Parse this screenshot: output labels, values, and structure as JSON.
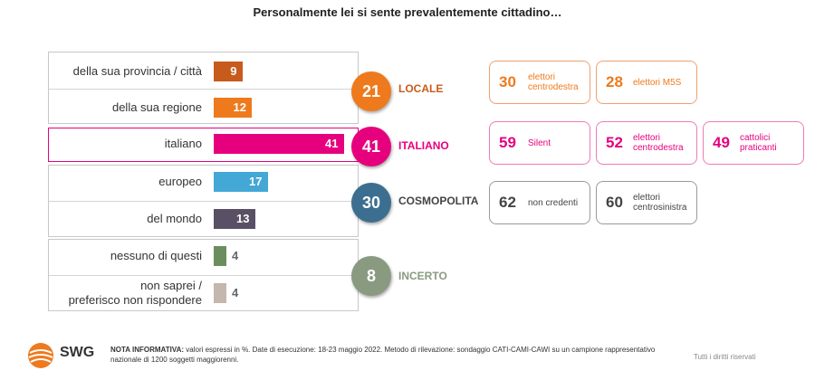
{
  "title": "Personalmente lei si sente prevalentemente cittadino…",
  "chart_data": {
    "type": "bar",
    "orientation": "horizontal",
    "xlim": [
      0,
      50
    ],
    "rows": [
      {
        "label": "della sua provincia / città",
        "value": 9,
        "color": "#c75b1b",
        "value_text": "9"
      },
      {
        "label": "della sua regione",
        "value": 12,
        "color": "#ee7a1d",
        "value_text": "12"
      },
      {
        "label": "italiano",
        "value": 41,
        "color": "#e6007e",
        "value_text": "41"
      },
      {
        "label": "europeo",
        "value": 17,
        "color": "#44a8d6",
        "value_text": "17"
      },
      {
        "label": "del mondo",
        "value": 13,
        "color": "#595065",
        "value_text": "13"
      },
      {
        "label": "nessuno di questi",
        "value": 4,
        "color": "#6b8e5f",
        "value_text": "4"
      },
      {
        "label": "non saprei / preferisco non rispondere",
        "label_lines": [
          "non saprei /",
          "preferisco non rispondere"
        ],
        "value": 4,
        "color": "#c4b7ae",
        "value_text": "4"
      }
    ],
    "groups": [
      {
        "value": "21",
        "label": "LOCALE",
        "color": "#ee7a1d",
        "text_color": "#c75b1b"
      },
      {
        "value": "41",
        "label": "ITALIANO",
        "color": "#e6007e",
        "text_color": "#e6007e"
      },
      {
        "value": "30",
        "label": "COSMOPOLITA",
        "color": "#3c6f8f",
        "text_color": "#444444"
      },
      {
        "value": "8",
        "label": "INCERTO",
        "color": "#8a9a80",
        "text_color": "#8a9a80"
      }
    ]
  },
  "cards": [
    {
      "value": "30",
      "lines": [
        "elettori",
        "centrodestra"
      ],
      "color": "#ee7a1d",
      "border": "#f0a070"
    },
    {
      "value": "28",
      "lines": [
        "elettori M5S"
      ],
      "color": "#ee7a1d",
      "border": "#f0a070"
    },
    {
      "value": "59",
      "lines": [
        "Silent"
      ],
      "color": "#e6007e",
      "border": "#f07ab8"
    },
    {
      "value": "52",
      "lines": [
        "elettori",
        "centrodestra"
      ],
      "color": "#e6007e",
      "border": "#f07ab8"
    },
    {
      "value": "49",
      "lines": [
        "cattolici",
        "praticanti"
      ],
      "color": "#e6007e",
      "border": "#f07ab8"
    },
    {
      "value": "62",
      "lines": [
        "non credenti"
      ],
      "color": "#444444",
      "border": "#9a9a9a"
    },
    {
      "value": "60",
      "lines": [
        "elettori",
        "centrosinistra"
      ],
      "color": "#444444",
      "border": "#9a9a9a"
    }
  ],
  "footer": {
    "logo_text": "SWG",
    "note_label": "NOTA INFORMATIVA:",
    "note_text": "valori espressi in %. Date di esecuzione: 18-23 maggio 2022. Metodo di rilevazione: sondaggio CATI-CAMI-CAWI su un campione rappresentativo nazionale di 1200 soggetti maggiorenni.",
    "rights": "Tutti i diritti riservati"
  }
}
